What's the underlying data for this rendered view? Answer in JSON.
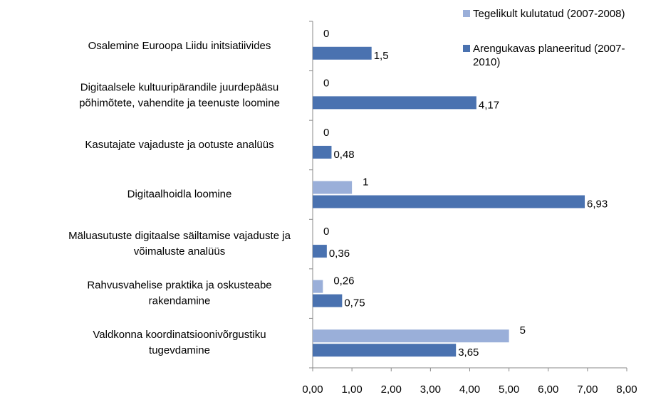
{
  "chart_data": {
    "type": "bar",
    "orientation": "horizontal",
    "categories": [
      [
        "Osalemine Euroopa Liidu initsiatiivides"
      ],
      [
        "Digitaalsele kultuuripärandile juurdepääsu",
        "põhimõtete, vahendite ja teenuste loomine"
      ],
      [
        "Kasutajate vajaduste ja ootuste analüüs"
      ],
      [
        "Digitaalhoidla loomine"
      ],
      [
        "Mäluasutuste digitaalse säiltamise vajaduste ja",
        "võimaluste analüüs"
      ],
      [
        "Rahvusvahelise praktika ja oskusteabe",
        "rakendamine"
      ],
      [
        "Valdkonna koordinatsioonivõrgustiku",
        "tugevdamine"
      ]
    ],
    "series": [
      {
        "name": "Tegelikult kulutatud (2007-2008)",
        "color": "#9aafd9",
        "values": [
          0,
          0,
          0,
          1,
          0,
          0.26,
          5
        ],
        "value_labels": [
          "0",
          "0",
          "0",
          "1",
          "0",
          "0,26",
          "5"
        ]
      },
      {
        "name": "Arengukavas planeeritud (2007-2010)",
        "color": "#4a72b0",
        "values": [
          1.5,
          4.17,
          0.48,
          6.93,
          0.36,
          0.75,
          3.65
        ],
        "value_labels": [
          "1,5",
          "4,17",
          "0,48",
          "6,93",
          "0,36",
          "0,75",
          "3,65"
        ]
      }
    ],
    "xlim": [
      0,
      8
    ],
    "xticks": [
      {
        "value": 0,
        "label": "0,00"
      },
      {
        "value": 1,
        "label": "1,00"
      },
      {
        "value": 2,
        "label": "2,00"
      },
      {
        "value": 3,
        "label": "3,00"
      },
      {
        "value": 4,
        "label": "4,00"
      },
      {
        "value": 5,
        "label": "5,00"
      },
      {
        "value": 6,
        "label": "6,00"
      },
      {
        "value": 7,
        "label": "7,00"
      },
      {
        "value": 8,
        "label": "8,00"
      }
    ],
    "legend": "top-right"
  }
}
